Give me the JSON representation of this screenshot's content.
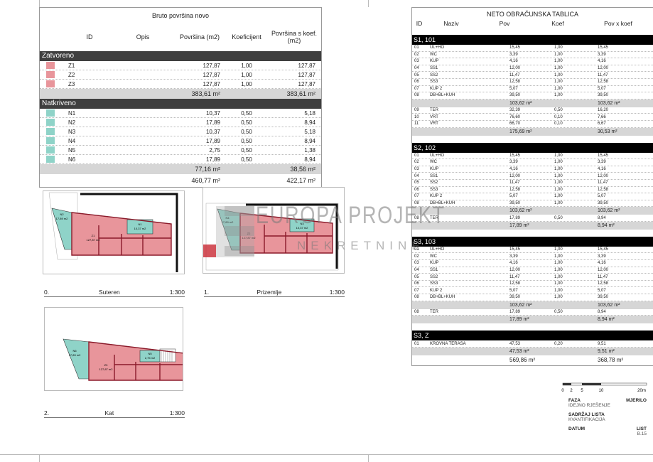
{
  "bruto": {
    "title": "Bruto površina novo",
    "headers": [
      "ID",
      "Opis",
      "Površina (m2)",
      "Koeficijent",
      "Površina s koef. (m2)"
    ],
    "groups": [
      {
        "name": "Zatvoreno",
        "swatch": "#e8959b",
        "rows": [
          {
            "id": "Z1",
            "area": "127,87",
            "coef": "1,00",
            "area_k": "127,87"
          },
          {
            "id": "Z2",
            "area": "127,87",
            "coef": "1,00",
            "area_k": "127,87"
          },
          {
            "id": "Z3",
            "area": "127,87",
            "coef": "1,00",
            "area_k": "127,87"
          }
        ],
        "subtotal": "383,61 m²",
        "subtotal_k": "383,61 m²"
      },
      {
        "name": "Natkriveno",
        "swatch": "#8fd3c8",
        "rows": [
          {
            "id": "N1",
            "area": "10,37",
            "coef": "0,50",
            "area_k": "5,18"
          },
          {
            "id": "N2",
            "area": "17,89",
            "coef": "0,50",
            "area_k": "8,94"
          },
          {
            "id": "N3",
            "area": "10,37",
            "coef": "0,50",
            "area_k": "5,18"
          },
          {
            "id": "N4",
            "area": "17,89",
            "coef": "0,50",
            "area_k": "8,94"
          },
          {
            "id": "N5",
            "area": "2,75",
            "coef": "0,50",
            "area_k": "1,38"
          },
          {
            "id": "N6",
            "area": "17,89",
            "coef": "0,50",
            "area_k": "8,94"
          }
        ],
        "subtotal": "77,16 m²",
        "subtotal_k": "38,56 m²"
      }
    ],
    "total": "460,77 m²",
    "total_k": "422,17 m²"
  },
  "neto": {
    "title": "NETO OBRAČUNSKA TABLICA",
    "headers": [
      "ID",
      "Naziv",
      "Pov",
      "Koef",
      "Pov x koef"
    ],
    "sections": [
      {
        "name": "S1, 101",
        "rows": [
          [
            "01",
            "UL+HO",
            "15,45",
            "1,00",
            "15,45"
          ],
          [
            "02",
            "WC",
            "3,39",
            "1,00",
            "3,39"
          ],
          [
            "03",
            "KUP",
            "4,16",
            "1,00",
            "4,16"
          ],
          [
            "04",
            "SS1",
            "12,00",
            "1,00",
            "12,00"
          ],
          [
            "05",
            "SS2",
            "11,47",
            "1,00",
            "11,47"
          ],
          [
            "06",
            "SS3",
            "12,58",
            "1,00",
            "12,58"
          ],
          [
            "07",
            "KUP 2",
            "5,07",
            "1,00",
            "5,07"
          ],
          [
            "08",
            "DB+BL+KUH",
            "39,50",
            "1,00",
            "39,50"
          ]
        ],
        "sub": [
          "103,62 m²",
          "103,62 m²"
        ],
        "extra": [
          [
            "09",
            "TER",
            "32,39",
            "0,50",
            "16,20"
          ],
          [
            "10",
            "VRT",
            "76,60",
            "0,10",
            "7,66"
          ],
          [
            "11",
            "VRT",
            "66,70",
            "0,10",
            "6,67"
          ]
        ],
        "total": [
          "175,69 m²",
          "30,53 m²"
        ]
      },
      {
        "name": "S2, 102",
        "rows": [
          [
            "01",
            "UL+HO",
            "15,45",
            "1,00",
            "15,45"
          ],
          [
            "02",
            "WC",
            "3,39",
            "1,00",
            "3,39"
          ],
          [
            "03",
            "KUP",
            "4,16",
            "1,00",
            "4,16"
          ],
          [
            "04",
            "SS1",
            "12,00",
            "1,00",
            "12,00"
          ],
          [
            "05",
            "SS2",
            "11,47",
            "1,00",
            "11,47"
          ],
          [
            "06",
            "SS3",
            "12,58",
            "1,00",
            "12,58"
          ],
          [
            "07",
            "KUP 2",
            "5,07",
            "1,00",
            "5,07"
          ],
          [
            "08",
            "DB+BL+KUH",
            "39,50",
            "1,00",
            "39,50"
          ]
        ],
        "sub": [
          "103,62 m²",
          "103,62 m²"
        ],
        "extra": [
          [
            "08",
            "TER",
            "17,89",
            "0,50",
            "8,94"
          ]
        ],
        "total": [
          "17,89 m²",
          "8,94 m²"
        ]
      },
      {
        "name": "S3, 103",
        "rows": [
          [
            "01",
            "UL+HO",
            "15,45",
            "1,00",
            "15,45"
          ],
          [
            "02",
            "WC",
            "3,39",
            "1,00",
            "3,39"
          ],
          [
            "03",
            "KUP",
            "4,16",
            "1,00",
            "4,16"
          ],
          [
            "04",
            "SS1",
            "12,00",
            "1,00",
            "12,00"
          ],
          [
            "05",
            "SS2",
            "11,47",
            "1,00",
            "11,47"
          ],
          [
            "06",
            "SS3",
            "12,58",
            "1,00",
            "12,58"
          ],
          [
            "07",
            "KUP 2",
            "5,07",
            "1,00",
            "5,07"
          ],
          [
            "08",
            "DB+BL+KUH",
            "39,50",
            "1,00",
            "39,50"
          ]
        ],
        "sub": [
          "103,62 m²",
          "103,62 m²"
        ],
        "extra": [
          [
            "08",
            "TER",
            "17,89",
            "0,50",
            "8,94"
          ]
        ],
        "total": [
          "17,89 m²",
          "8,94 m²"
        ]
      },
      {
        "name": "S3, Z",
        "rows": [
          [
            "01",
            "KROVNA TERASA",
            "47,53",
            "0,20",
            "9,51"
          ]
        ],
        "sub": null,
        "extra": [],
        "total": [
          "47,53 m²",
          "9,51 m²"
        ]
      }
    ],
    "grand_total": [
      "569,86 m²",
      "368,78 m²"
    ]
  },
  "plans": [
    {
      "num": "0.",
      "name": "Suteren",
      "scale": "1:300",
      "room_z": "Z1",
      "room_z_area": "127,87 m2",
      "room_n": "N2",
      "room_n_area": "17,89 m2",
      "room_n2": "N1",
      "room_n2_area": "10,37 m2"
    },
    {
      "num": "1.",
      "name": "Prizemlje",
      "scale": "1:300",
      "room_z": "Z2",
      "room_z_area": "127,87 m2",
      "room_n": "N4",
      "room_n_area": "17,89 m2",
      "room_n2": "N3",
      "room_n2_area": "10,37 m2"
    },
    {
      "num": "2.",
      "name": "Kat",
      "scale": "1:300",
      "room_z": "Z3",
      "room_z_area": "127,87 m2",
      "room_n": "N6",
      "room_n_area": "17,89 m2",
      "room_n2": "N5",
      "room_n2_area": "2,75 m2"
    }
  ],
  "watermark": {
    "line1": "EUROPA PROJEKT",
    "line2": "NEKRETNINE"
  },
  "scale_bar": {
    "ticks": [
      "0",
      "2",
      "5",
      "10",
      "20m"
    ]
  },
  "title_block": {
    "faza_label": "FAZA",
    "faza_value": "IDEJNO RJEŠENJE",
    "mjerilo_label": "MJERILO",
    "sadrzaj_label": "SADRŽAJ LISTA",
    "sadrzaj_value": "KVANTIFIKACIJA",
    "datum_label": "DATUM",
    "list_label": "LIST",
    "list_value": "B.15"
  },
  "colors": {
    "closed": "#e8959b",
    "covered": "#8fd3c8",
    "dark": "#3f3f3f"
  }
}
